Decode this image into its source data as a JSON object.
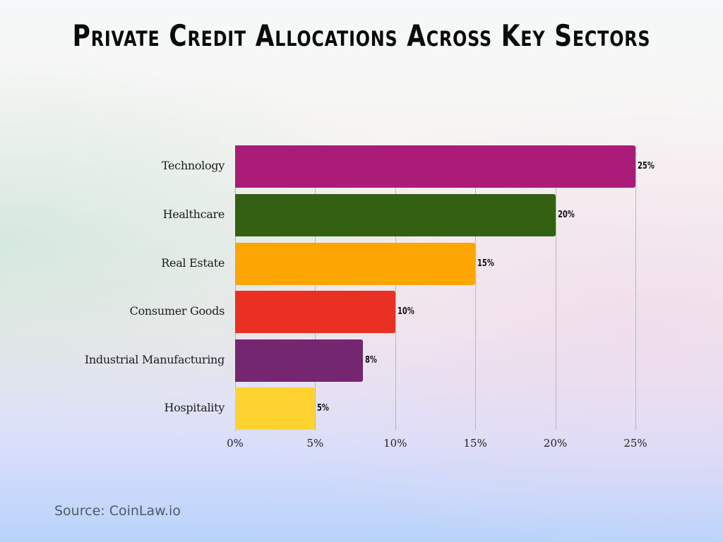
{
  "title": "Private Credit Allocations Across Key Sectors",
  "source": "Source: CoinLaw.io",
  "chart_data": {
    "type": "bar",
    "orientation": "horizontal",
    "title": "Private Credit Allocations Across Key Sectors",
    "xlabel": "",
    "ylabel": "",
    "categories": [
      "Technology",
      "Healthcare",
      "Real Estate",
      "Consumer Goods",
      "Industrial Manufacturing",
      "Hospitality"
    ],
    "values": [
      25,
      20,
      15,
      10,
      8,
      5
    ],
    "value_labels": [
      "25%",
      "20%",
      "15%",
      "10%",
      "8%",
      "5%"
    ],
    "colors": [
      "#ab1c78",
      "#346111",
      "#fca503",
      "#e93023",
      "#742770",
      "#fed330"
    ],
    "xlim": [
      0,
      25
    ],
    "x_ticks": [
      "0%",
      "5%",
      "10%",
      "15%",
      "20%",
      "25%"
    ],
    "grid": "vertical",
    "legend": "none",
    "source": "Source: CoinLaw.io"
  }
}
